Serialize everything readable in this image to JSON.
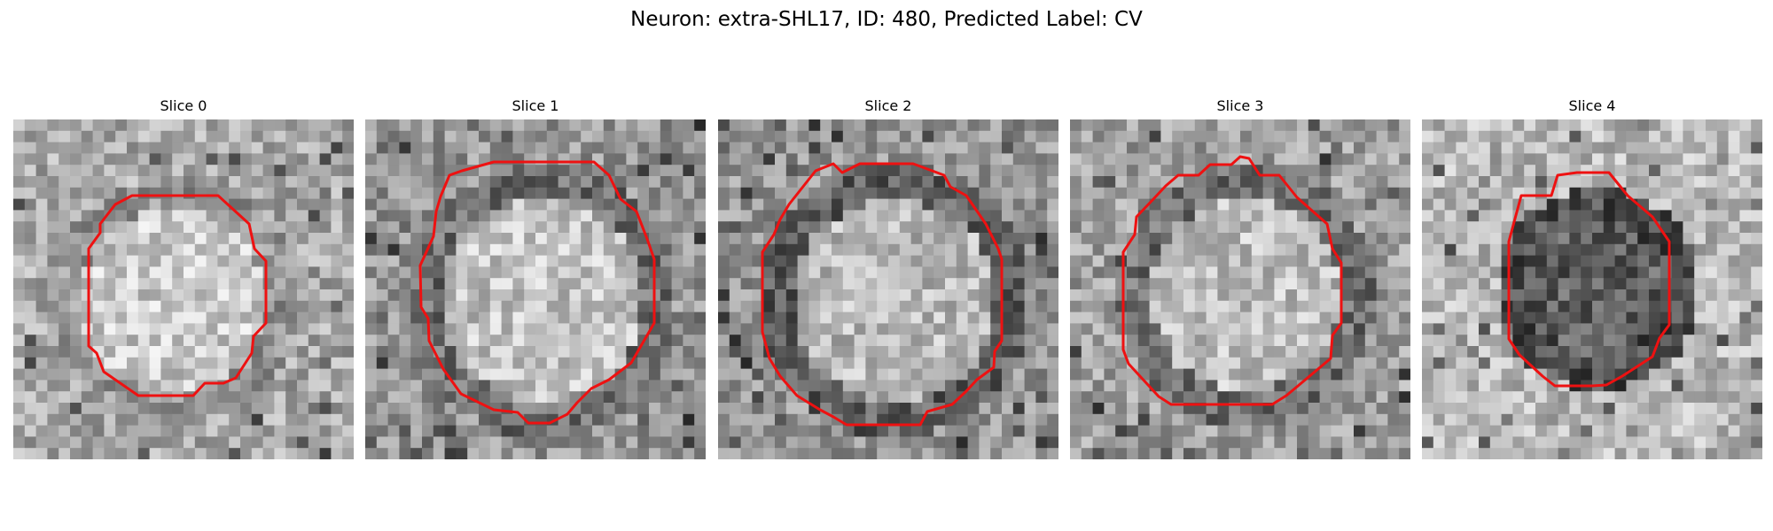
{
  "figure": {
    "title": "Neuron: extra-SHL17, ID: 480, Predicted Label: CV"
  },
  "panels": [
    {
      "title": "Slice 0",
      "contour_color": "#ee1111"
    },
    {
      "title": "Slice 1",
      "contour_color": "#ee1111"
    },
    {
      "title": "Slice 2",
      "contour_color": "#ee1111"
    },
    {
      "title": "Slice 3",
      "contour_color": "#ee1111"
    },
    {
      "title": "Slice 4",
      "contour_color": "#ee1111"
    }
  ]
}
